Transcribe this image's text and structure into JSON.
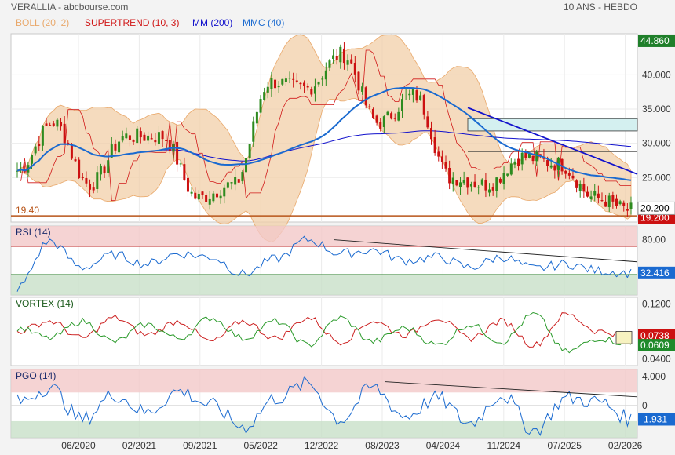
{
  "header": {
    "title": "VERALLIA - abcbourse.com",
    "period": "10 ANS - HEBDO"
  },
  "colors": {
    "up": "#2e8b1f",
    "down": "#cc1111",
    "boll_fill": "#f2cfa8",
    "boll_line": "#e9a86a",
    "supertrend": "#d01818",
    "mm200": "#1111cc",
    "mmc40": "#1a6ad0",
    "rsi_line": "#1a6ad0",
    "vortex_plus": "#2a9a2a",
    "vortex_minus": "#cc2020",
    "pgo_line": "#1a6ad0",
    "overbought": "#f2c8c8",
    "oversold": "#c8e0c8",
    "support": "#b8551a",
    "zone_fill": "#d4f0f0"
  },
  "chart_data": [
    {
      "type": "candlestick",
      "panel": "price",
      "legend": [
        {
          "label": "BOLL (20, 2)",
          "color": "#e9a86a"
        },
        {
          "label": "SUPERTREND (10, 3)",
          "color": "#d01818"
        },
        {
          "label": "MM (200)",
          "color": "#1111cc"
        },
        {
          "label": "MMC (40)",
          "color": "#1a6ad0"
        }
      ],
      "x_tick_labels": [
        "06/2020",
        "02/2021",
        "09/2021",
        "05/2022",
        "12/2022",
        "08/2023",
        "04/2024",
        "11/2024",
        "07/2025",
        "02/2026"
      ],
      "y_tick_labels": [
        "40.000",
        "35.000",
        "30.000",
        "25.000"
      ],
      "ylim": [
        18.5,
        46
      ],
      "last_price": "20.200",
      "high_label": "44.860",
      "partial_label": "19.200",
      "support_label": "19.40",
      "support_level": 19.4,
      "series_anchor_dates": [
        "2019-10",
        "2020-03",
        "2020-06",
        "2021-02",
        "2021-09",
        "2022-03",
        "2022-07",
        "2022-12",
        "2023-04",
        "2023-08",
        "2023-10",
        "2024-04",
        "2024-06",
        "2024-11",
        "2025-03",
        "2025-07",
        "2025-10",
        "2026-02"
      ],
      "close_anchors": [
        26,
        33,
        24,
        31,
        31,
        22,
        24,
        39,
        38,
        43,
        33,
        37,
        25,
        24,
        28,
        27,
        22,
        20.2
      ]
    },
    {
      "type": "line",
      "panel": "rsi",
      "legend": [
        {
          "label": "RSI (14)",
          "color": "#1a6ad0"
        }
      ],
      "y_tick_labels": [
        "80.00"
      ],
      "ylim": [
        0,
        100
      ],
      "overbought": 70,
      "oversold": 30,
      "last_value": "32.416",
      "anchors": [
        10,
        78,
        40,
        58,
        45,
        60,
        55,
        30,
        52,
        80,
        60,
        65,
        50,
        55,
        40,
        55,
        38,
        45,
        35,
        32
      ]
    },
    {
      "type": "line",
      "panel": "vortex",
      "legend": [
        {
          "label": "VORTEX (14)",
          "color": "#2a9a2a"
        }
      ],
      "y_tick_labels": [
        "0.1200",
        "0.0400"
      ],
      "ylim": [
        0.03,
        0.13
      ],
      "last_plus": "0.0609",
      "last_minus": "0.0738",
      "plus_anchors": [
        0.085,
        0.07,
        0.095,
        0.065,
        0.09,
        0.07,
        0.1,
        0.07,
        0.095,
        0.06,
        0.1,
        0.065,
        0.085,
        0.06,
        0.09,
        0.065,
        0.105,
        0.05,
        0.07,
        0.061
      ],
      "minus_anchors": [
        0.08,
        0.095,
        0.07,
        0.1,
        0.075,
        0.095,
        0.065,
        0.095,
        0.07,
        0.1,
        0.065,
        0.095,
        0.075,
        0.1,
        0.07,
        0.095,
        0.06,
        0.105,
        0.08,
        0.074
      ]
    },
    {
      "type": "line",
      "panel": "pgo",
      "legend": [
        {
          "label": "PGO (14)",
          "color": "#1a6ad0"
        }
      ],
      "y_tick_labels": [
        "4.000",
        "0"
      ],
      "ylim": [
        -4.5,
        5
      ],
      "overbought": 1.8,
      "oversold": -2.2,
      "last_value": "-1.931",
      "anchors": [
        0.5,
        2.5,
        -2,
        1.5,
        -1,
        2,
        0,
        -3,
        1,
        3,
        -2,
        2.5,
        -1.5,
        1,
        -2.5,
        1.5,
        -3.5,
        1,
        0.5,
        -1.9
      ]
    }
  ]
}
